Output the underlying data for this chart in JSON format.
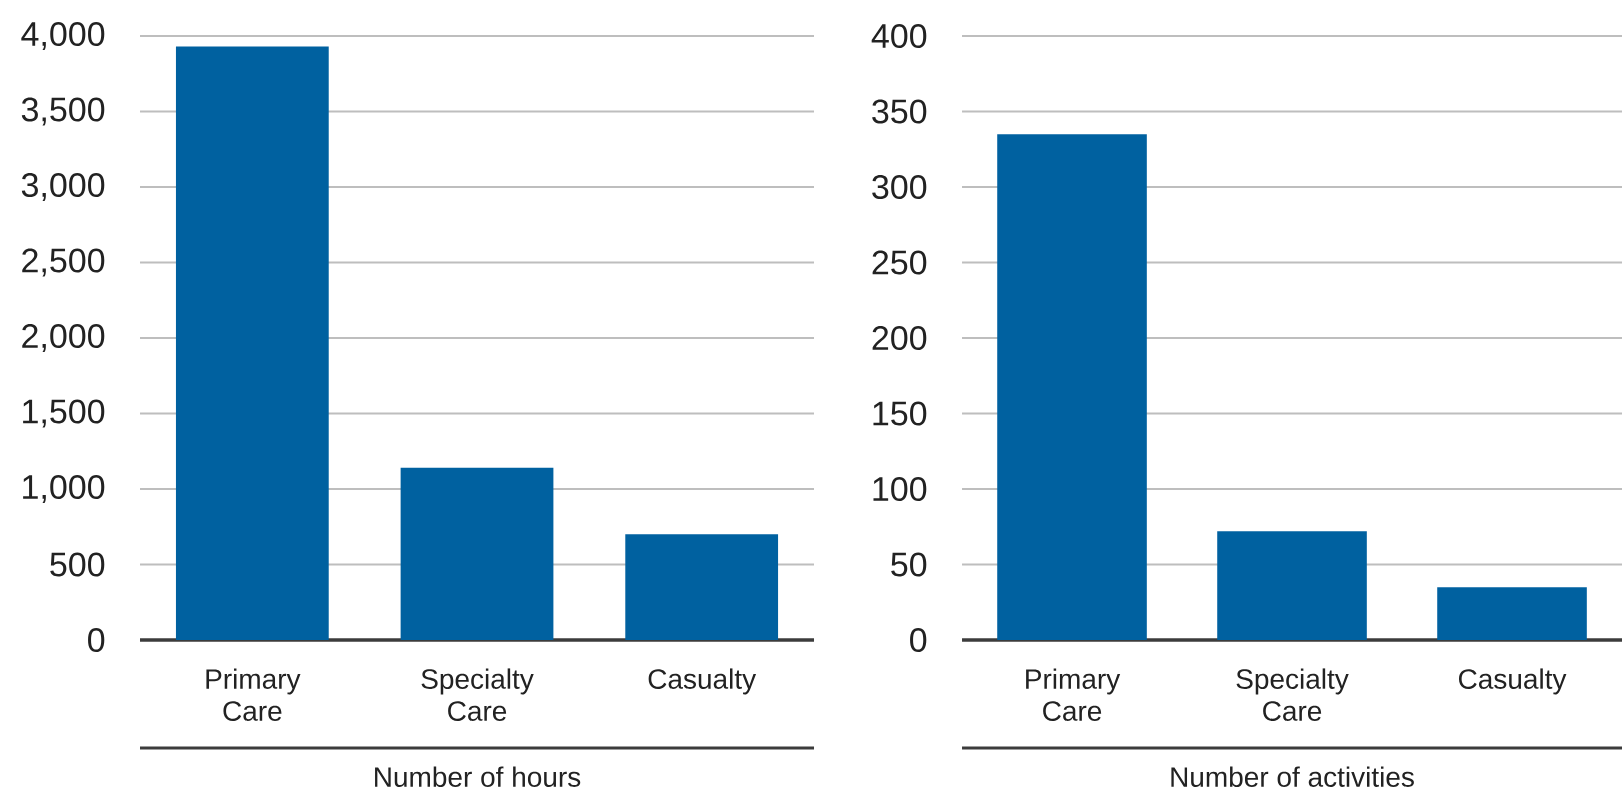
{
  "chart_data": [
    {
      "type": "bar",
      "categories": [
        "Primary Care",
        "Specialty Care",
        "Casualty"
      ],
      "values": [
        3930,
        1140,
        700
      ],
      "color": "#0061a0",
      "xlabel": "Number of hours",
      "ylim": [
        0,
        4000
      ],
      "yticks": [
        0,
        500,
        {
          "value": 1000,
          "label": "1,000"
        },
        {
          "value": 1500,
          "label": "1,500"
        },
        {
          "value": 2000,
          "label": "2,000"
        },
        {
          "value": 2500,
          "label": "2,500"
        },
        {
          "value": 3000,
          "label": "3,000"
        },
        {
          "value": 3500,
          "label": "3,500"
        },
        {
          "value": 4000,
          "label": "4,000"
        }
      ],
      "grid": "y"
    },
    {
      "type": "bar",
      "categories": [
        "Primary Care",
        "Specialty Care",
        "Casualty"
      ],
      "values": [
        335,
        72,
        35
      ],
      "color": "#0061a0",
      "xlabel": "Number of activities",
      "ylim": [
        0,
        400
      ],
      "yticks": [
        0,
        50,
        100,
        150,
        200,
        250,
        300,
        350,
        400
      ],
      "grid": "y"
    }
  ]
}
